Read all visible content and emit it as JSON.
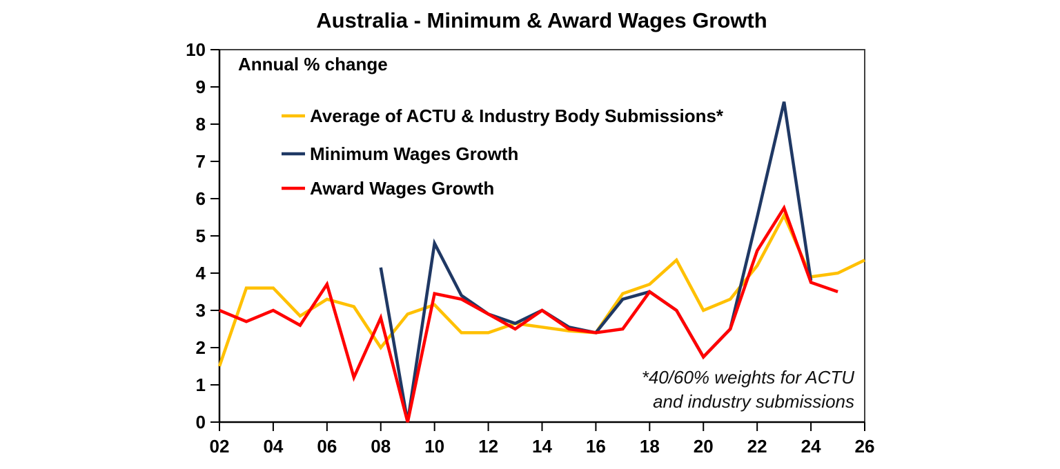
{
  "title": "Australia - Minimum & Award Wages Growth",
  "chart_data": {
    "type": "line",
    "title": "Australia - Minimum & Award Wages Growth",
    "inner_label": "Annual % change",
    "xlabel": "",
    "ylabel": "",
    "ylim": [
      0,
      10
    ],
    "y_ticks": [
      0,
      1,
      2,
      3,
      4,
      5,
      6,
      7,
      8,
      9,
      10
    ],
    "x_range_years": [
      2002,
      2026
    ],
    "x_tick_years": [
      2002,
      2004,
      2006,
      2008,
      2010,
      2012,
      2014,
      2016,
      2018,
      2020,
      2022,
      2024,
      2026
    ],
    "x_tick_labels": [
      "02",
      "04",
      "06",
      "08",
      "10",
      "12",
      "14",
      "16",
      "18",
      "20",
      "22",
      "24",
      "26"
    ],
    "grid": false,
    "legend_position": "inside-top-left",
    "annotation": {
      "lines": [
        "*40/60% weights for ACTU",
        "and industry submissions"
      ],
      "align": "right"
    },
    "series": [
      {
        "name": "Average of ACTU & Industry Body Submissions*",
        "color": "#FFC000",
        "start_year": 2002,
        "end_year": 2026,
        "values": [
          1.5,
          3.6,
          3.6,
          2.85,
          3.3,
          3.1,
          2.0,
          2.9,
          3.15,
          2.4,
          2.4,
          2.65,
          2.55,
          2.45,
          2.4,
          3.45,
          3.7,
          4.35,
          3.0,
          3.3,
          4.2,
          5.55,
          3.9,
          4.0,
          4.35
        ]
      },
      {
        "name": "Minimum Wages Growth",
        "color": "#1F3864",
        "start_year": 2008,
        "end_year": 2024,
        "values": [
          4.15,
          0,
          4.8,
          3.4,
          2.9,
          2.65,
          3.0,
          2.55,
          2.4,
          3.3,
          3.5,
          3.0,
          1.75,
          2.5,
          5.5,
          8.6,
          3.8
        ]
      },
      {
        "name": "Award Wages Growth",
        "color": "#FF0000",
        "start_year": 2002,
        "end_year": 2025,
        "values": [
          3.0,
          2.7,
          3.0,
          2.6,
          3.7,
          1.2,
          2.8,
          0,
          3.45,
          3.3,
          2.9,
          2.5,
          3.0,
          2.5,
          2.4,
          2.5,
          3.5,
          3.0,
          1.75,
          2.5,
          4.6,
          5.75,
          3.75,
          3.5
        ]
      }
    ]
  }
}
